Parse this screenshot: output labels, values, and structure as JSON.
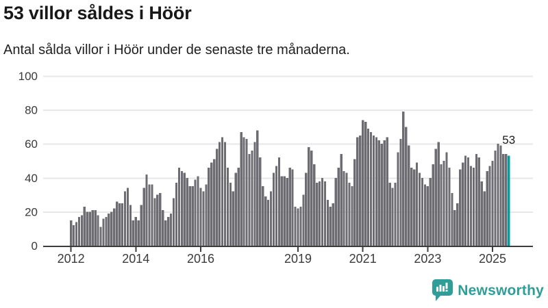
{
  "header": {
    "title": "53 villor såldes i Höör",
    "subtitle": "Antal sålda villor i Höör under de senaste tre månaderna."
  },
  "chart_data": {
    "type": "bar",
    "title": "53 villor såldes i Höör",
    "subtitle": "Antal sålda villor i Höör under de senaste tre månaderna.",
    "x_start": "2012-01",
    "x_end": "2025-07",
    "values": [
      15,
      12,
      14,
      17,
      18,
      23,
      20,
      20,
      21,
      21,
      18,
      11,
      16,
      17,
      19,
      20,
      22,
      26,
      25,
      25,
      32,
      34,
      24,
      15,
      17,
      15,
      24,
      34,
      42,
      36,
      36,
      28,
      30,
      31,
      21,
      15,
      17,
      19,
      28,
      37,
      46,
      44,
      43,
      40,
      35,
      35,
      39,
      41,
      34,
      32,
      36,
      46,
      49,
      51,
      57,
      61,
      64,
      61,
      46,
      37,
      32,
      43,
      46,
      67,
      64,
      63,
      54,
      56,
      61,
      68,
      52,
      35,
      29,
      27,
      32,
      43,
      47,
      52,
      41,
      41,
      40,
      46,
      45,
      23,
      22,
      23,
      30,
      43,
      58,
      56,
      48,
      37,
      38,
      40,
      38,
      27,
      23,
      25,
      40,
      46,
      54,
      44,
      43,
      37,
      35,
      51,
      64,
      65,
      74,
      73,
      69,
      67,
      65,
      64,
      62,
      60,
      62,
      64,
      37,
      34,
      37,
      55,
      63,
      79,
      70,
      59,
      46,
      45,
      49,
      43,
      40,
      36,
      35,
      40,
      48,
      57,
      61,
      48,
      50,
      55,
      46,
      31,
      21,
      25,
      45,
      49,
      53,
      52,
      47,
      46,
      54,
      52,
      38,
      32,
      44,
      47,
      50,
      56,
      60,
      59,
      54,
      54,
      53
    ],
    "highlight_last_value": 53,
    "annotation_label": "53",
    "ylim": [
      0,
      100
    ],
    "y_ticks": [
      0,
      20,
      40,
      60,
      80,
      100
    ],
    "x_ticks": [
      {
        "label": "2012",
        "month_index": 0
      },
      {
        "label": "2014",
        "month_index": 24
      },
      {
        "label": "2016",
        "month_index": 48
      },
      {
        "label": "2019",
        "month_index": 84
      },
      {
        "label": "2021",
        "month_index": 108
      },
      {
        "label": "2023",
        "month_index": 132
      },
      {
        "label": "2025",
        "month_index": 156
      }
    ],
    "grid": true,
    "legend": false,
    "bar_color": "#6c6c72",
    "highlight_color": "#00a0a0",
    "gridline_color": "#e7e7e7",
    "axis_color": "#3d3d3d",
    "tick_label_color": "#3a3a3a",
    "annotation_color": "#1a1a1a"
  },
  "footer": {
    "brand_name": "Newsworthy",
    "brand_color": "#2f9e98"
  }
}
